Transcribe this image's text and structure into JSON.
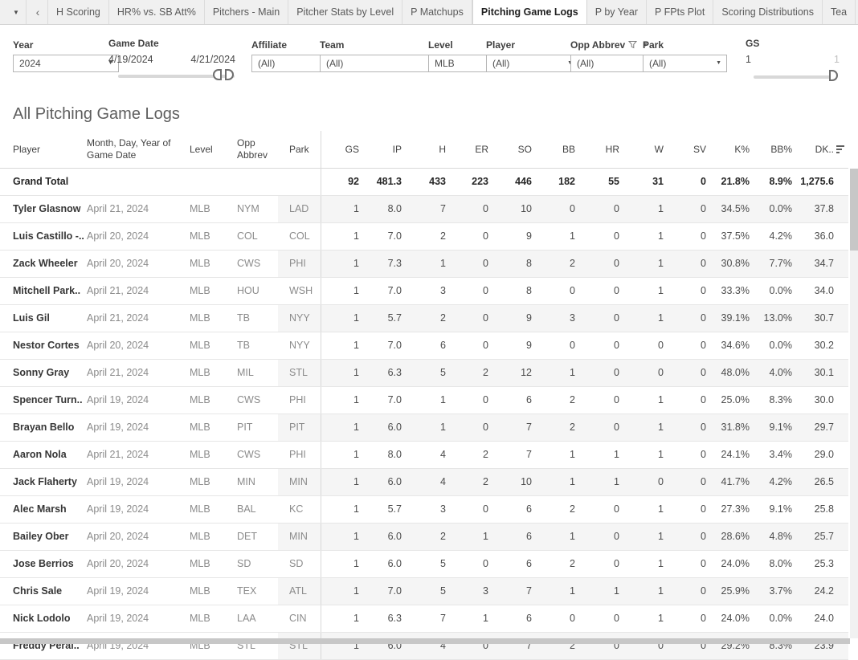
{
  "tab_bar": {
    "tabs": [
      "H Scoring",
      "HR% vs. SB Att%",
      "Pitchers - Main",
      "Pitcher Stats by Level",
      "P Matchups",
      "Pitching Game Logs",
      "P by Year",
      "P FPts Plot",
      "Scoring Distributions",
      "Tea"
    ],
    "active_tab": "Pitching Game Logs"
  },
  "filters": {
    "year": {
      "label": "Year",
      "value": "2024"
    },
    "game_date": {
      "label": "Game Date",
      "start": "4/19/2024",
      "end": "4/21/2024"
    },
    "affiliate": {
      "label": "Affiliate",
      "value": "(All)"
    },
    "team": {
      "label": "Team",
      "value": "(All)"
    },
    "level": {
      "label": "Level",
      "value": "MLB"
    },
    "player": {
      "label": "Player",
      "value": "(All)"
    },
    "opp_abbrev": {
      "label": "Opp Abbrev",
      "value": "(All)"
    },
    "park": {
      "label": "Park",
      "value": "(All)"
    },
    "gs": {
      "label": "GS",
      "min": "1",
      "max": "1"
    }
  },
  "title": "All Pitching Game Logs",
  "table": {
    "columns": [
      "Player",
      "Month, Day, Year of Game Date",
      "Level",
      "Opp Abbrev",
      "Park",
      "GS",
      "IP",
      "H",
      "ER",
      "SO",
      "BB",
      "HR",
      "W",
      "SV",
      "K%",
      "BB%",
      "DK.."
    ],
    "sort_icon": "sort-descending-icon",
    "grand_total": {
      "cells": [
        "Grand Total",
        "",
        "",
        "",
        "",
        "92",
        "481.3",
        "433",
        "223",
        "446",
        "182",
        "55",
        "31",
        "0",
        "21.8%",
        "8.9%",
        "1,275.6"
      ]
    },
    "rows": [
      {
        "cells": [
          "Tyler Glasnow",
          "April 21, 2024",
          "MLB",
          "NYM",
          "LAD",
          "1",
          "8.0",
          "7",
          "0",
          "10",
          "0",
          "0",
          "1",
          "0",
          "34.5%",
          "0.0%",
          "37.8"
        ]
      },
      {
        "cells": [
          "Luis Castillo -..",
          "April 20, 2024",
          "MLB",
          "COL",
          "COL",
          "1",
          "7.0",
          "2",
          "0",
          "9",
          "1",
          "0",
          "1",
          "0",
          "37.5%",
          "4.2%",
          "36.0"
        ]
      },
      {
        "cells": [
          "Zack Wheeler",
          "April 20, 2024",
          "MLB",
          "CWS",
          "PHI",
          "1",
          "7.3",
          "1",
          "0",
          "8",
          "2",
          "0",
          "1",
          "0",
          "30.8%",
          "7.7%",
          "34.7"
        ]
      },
      {
        "cells": [
          "Mitchell Park..",
          "April 21, 2024",
          "MLB",
          "HOU",
          "WSH",
          "1",
          "7.0",
          "3",
          "0",
          "8",
          "0",
          "0",
          "1",
          "0",
          "33.3%",
          "0.0%",
          "34.0"
        ]
      },
      {
        "cells": [
          "Luis Gil",
          "April 21, 2024",
          "MLB",
          "TB",
          "NYY",
          "1",
          "5.7",
          "2",
          "0",
          "9",
          "3",
          "0",
          "1",
          "0",
          "39.1%",
          "13.0%",
          "30.7"
        ]
      },
      {
        "cells": [
          "Nestor Cortes",
          "April 20, 2024",
          "MLB",
          "TB",
          "NYY",
          "1",
          "7.0",
          "6",
          "0",
          "9",
          "0",
          "0",
          "0",
          "0",
          "34.6%",
          "0.0%",
          "30.2"
        ]
      },
      {
        "cells": [
          "Sonny Gray",
          "April 21, 2024",
          "MLB",
          "MIL",
          "STL",
          "1",
          "6.3",
          "5",
          "2",
          "12",
          "1",
          "0",
          "0",
          "0",
          "48.0%",
          "4.0%",
          "30.1"
        ]
      },
      {
        "cells": [
          "Spencer Turn..",
          "April 19, 2024",
          "MLB",
          "CWS",
          "PHI",
          "1",
          "7.0",
          "1",
          "0",
          "6",
          "2",
          "0",
          "1",
          "0",
          "25.0%",
          "8.3%",
          "30.0"
        ]
      },
      {
        "cells": [
          "Brayan Bello",
          "April 19, 2024",
          "MLB",
          "PIT",
          "PIT",
          "1",
          "6.0",
          "1",
          "0",
          "7",
          "2",
          "0",
          "1",
          "0",
          "31.8%",
          "9.1%",
          "29.7"
        ]
      },
      {
        "cells": [
          "Aaron Nola",
          "April 21, 2024",
          "MLB",
          "CWS",
          "PHI",
          "1",
          "8.0",
          "4",
          "2",
          "7",
          "1",
          "1",
          "1",
          "0",
          "24.1%",
          "3.4%",
          "29.0"
        ]
      },
      {
        "cells": [
          "Jack Flaherty",
          "April 19, 2024",
          "MLB",
          "MIN",
          "MIN",
          "1",
          "6.0",
          "4",
          "2",
          "10",
          "1",
          "1",
          "0",
          "0",
          "41.7%",
          "4.2%",
          "26.5"
        ]
      },
      {
        "cells": [
          "Alec Marsh",
          "April 19, 2024",
          "MLB",
          "BAL",
          "KC",
          "1",
          "5.7",
          "3",
          "0",
          "6",
          "2",
          "0",
          "1",
          "0",
          "27.3%",
          "9.1%",
          "25.8"
        ]
      },
      {
        "cells": [
          "Bailey Ober",
          "April 20, 2024",
          "MLB",
          "DET",
          "MIN",
          "1",
          "6.0",
          "2",
          "1",
          "6",
          "1",
          "0",
          "1",
          "0",
          "28.6%",
          "4.8%",
          "25.7"
        ]
      },
      {
        "cells": [
          "Jose Berrios",
          "April 20, 2024",
          "MLB",
          "SD",
          "SD",
          "1",
          "6.0",
          "5",
          "0",
          "6",
          "2",
          "0",
          "1",
          "0",
          "24.0%",
          "8.0%",
          "25.3"
        ]
      },
      {
        "cells": [
          "Chris Sale",
          "April 19, 2024",
          "MLB",
          "TEX",
          "ATL",
          "1",
          "7.0",
          "5",
          "3",
          "7",
          "1",
          "1",
          "1",
          "0",
          "25.9%",
          "3.7%",
          "24.2"
        ]
      },
      {
        "cells": [
          "Nick Lodolo",
          "April 19, 2024",
          "MLB",
          "LAA",
          "CIN",
          "1",
          "6.3",
          "7",
          "1",
          "6",
          "0",
          "0",
          "1",
          "0",
          "24.0%",
          "0.0%",
          "24.0"
        ]
      },
      {
        "cells": [
          "Freddy Peral..",
          "April 19, 2024",
          "MLB",
          "STL",
          "STL",
          "1",
          "6.0",
          "4",
          "0",
          "7",
          "2",
          "0",
          "0",
          "0",
          "29.2%",
          "8.3%",
          "23.9"
        ]
      }
    ]
  },
  "colors": {
    "row_banding": "#f5f5f5",
    "divider": "#d8d8d8",
    "scrollbar_thumb": "#c7c7c7"
  }
}
